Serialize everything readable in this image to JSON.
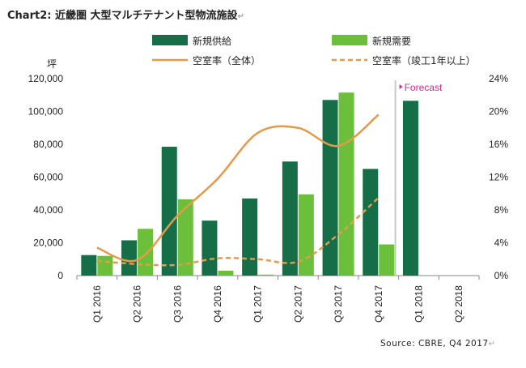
{
  "header": {
    "title": "Chart2: 近畿圏 大型マルチテナント型物流施設"
  },
  "footer": {
    "source": "Source: CBRE, Q4 2017"
  },
  "colors": {
    "supply": "#156e48",
    "demand": "#6cbf3a",
    "vacancy_all": "#e59a4a",
    "vacancy_1yr": "#e59a4a",
    "forecast_line": "#c9c9c9",
    "forecast_text": "#cc2d8c",
    "axis": "#888888"
  },
  "chart_data": {
    "type": "bar",
    "categories": [
      "Q1 2016",
      "Q2 2016",
      "Q3 2016",
      "Q4 2016",
      "Q1 2017",
      "Q2 2017",
      "Q3 2017",
      "Q4 2017",
      "Q1 2018",
      "Q2 2018"
    ],
    "ylabel": "坪",
    "ylim": [
      0,
      120000
    ],
    "y_ticks": [
      "0",
      "20,000",
      "40,000",
      "60,000",
      "80,000",
      "100,000",
      "120,000"
    ],
    "y2lim": [
      0,
      24
    ],
    "y2_ticks": [
      "0%",
      "4%",
      "8%",
      "12%",
      "16%",
      "20%",
      "24%"
    ],
    "legend_position": "top",
    "annotation": "Forecast",
    "series": [
      {
        "name": "新規供給",
        "kind": "bar",
        "axis": "left",
        "values": [
          12500,
          21500,
          78500,
          33500,
          47000,
          69500,
          107000,
          65000,
          106500,
          null
        ]
      },
      {
        "name": "新規需要",
        "kind": "bar",
        "axis": "left",
        "values": [
          12000,
          28500,
          46500,
          3000,
          600,
          49500,
          111500,
          19000,
          null,
          null
        ]
      },
      {
        "name": "空室率（全体）",
        "kind": "line",
        "style": "solid",
        "axis": "right",
        "values": [
          3.4,
          1.9,
          7.3,
          11.8,
          17.4,
          18.0,
          15.8,
          19.6,
          null,
          null
        ]
      },
      {
        "name": "空室率（竣工1年以上）",
        "kind": "line",
        "style": "dashed",
        "axis": "right",
        "values": [
          1.8,
          1.4,
          1.3,
          2.1,
          2.0,
          1.7,
          5.0,
          9.5,
          null,
          null
        ]
      }
    ]
  }
}
